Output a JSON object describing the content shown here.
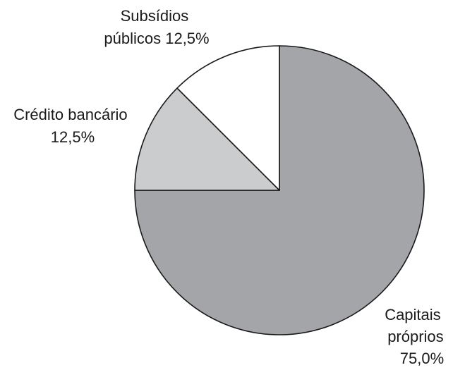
{
  "chart_data": {
    "type": "pie",
    "start_angle_deg": 0,
    "direction": "clockwise",
    "outline_color": "#1a1a1a",
    "slices": [
      {
        "label_lines": [
          "Capitais",
          "próprios",
          "75,0%"
        ],
        "value": 75.0,
        "color": "#a3a5a8"
      },
      {
        "label_lines": [
          "Crédito bancário",
          "12,5%"
        ],
        "value": 12.5,
        "color": "#cbccce"
      },
      {
        "label_lines": [
          "Subsídios",
          "públicos 12,5%"
        ],
        "value": 12.5,
        "color": "#ffffff"
      }
    ]
  }
}
